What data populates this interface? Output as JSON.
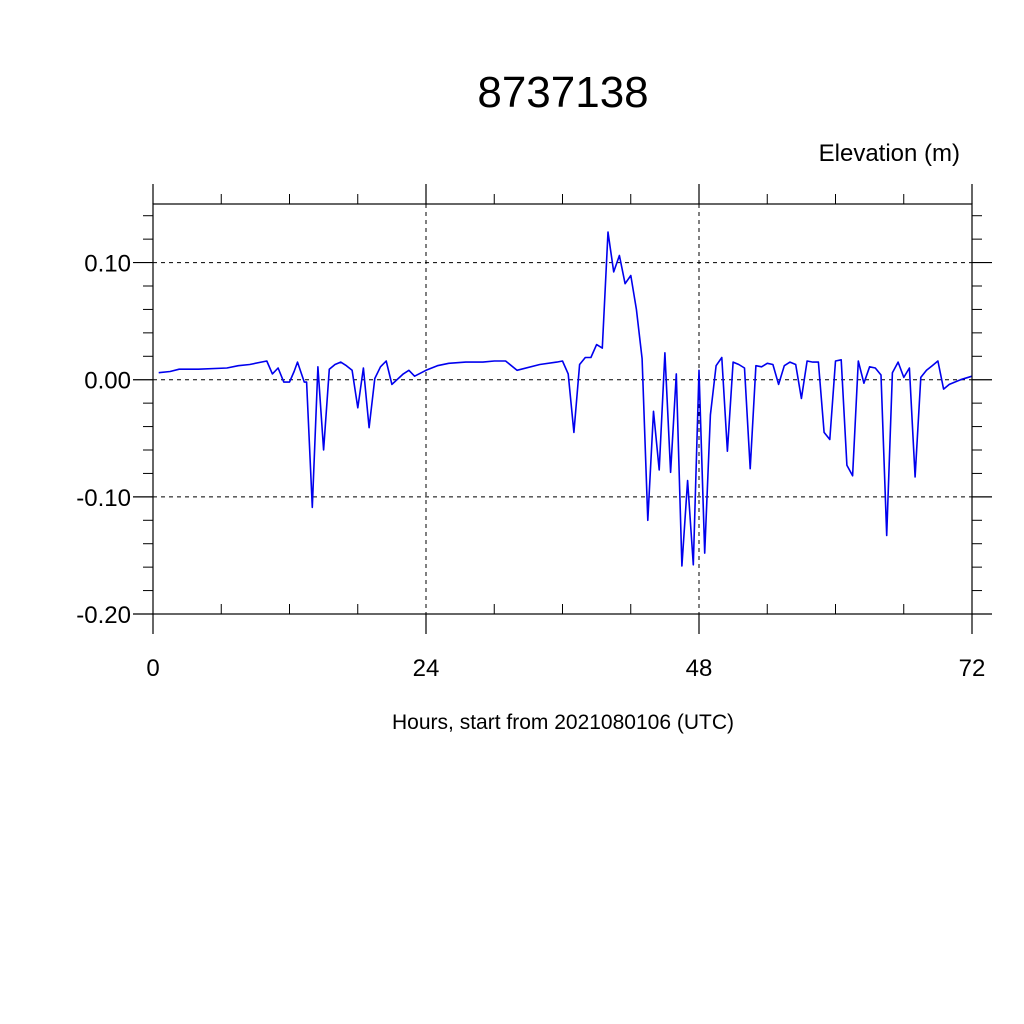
{
  "chart_data": {
    "type": "line",
    "title": "8737138",
    "ylabel_unit": "Elevation (m)",
    "xlabel": "Hours, start from 2021080106 (UTC)",
    "xlim": [
      0,
      72
    ],
    "ylim": [
      -0.2,
      0.15
    ],
    "x_ticks": [
      0,
      24,
      48,
      72
    ],
    "x_tick_labels": [
      "0",
      "24",
      "48",
      "72"
    ],
    "y_ticks": [
      -0.2,
      -0.1,
      0.0,
      0.1
    ],
    "y_tick_labels": [
      "-0.20",
      "-0.10",
      "0.00",
      "0.10"
    ],
    "grid": "dashed at major ticks",
    "series": [
      {
        "color": "#0000ee",
        "x": [
          0.5,
          1.5,
          2.3,
          4,
          6.5,
          7.5,
          8.5,
          10,
          10.5,
          11,
          11.5,
          12,
          12.4,
          12.7,
          13.3,
          13.5,
          14,
          14.5,
          15,
          15.5,
          16,
          16.5,
          17,
          17.5,
          18,
          18.5,
          19,
          19.5,
          20,
          20.5,
          21,
          22,
          22.5,
          23,
          24,
          25,
          26,
          27.5,
          29,
          30,
          31,
          32,
          34,
          35.5,
          36,
          36.5,
          37,
          37.5,
          38,
          38.5,
          39,
          39.5,
          40,
          40.5,
          41,
          41.5,
          42,
          42.5,
          43,
          43.5,
          44,
          44.5,
          45,
          45.5,
          46,
          46.5,
          47,
          47.5,
          48,
          48.5,
          49,
          49.5,
          50,
          50.5,
          51,
          51.5,
          52,
          52.5,
          53,
          53.5,
          54,
          54.5,
          55,
          55.5,
          56,
          56.5,
          57,
          57.5,
          58,
          58.5,
          59,
          59.5,
          60,
          60.5,
          61,
          61.5,
          62,
          62.5,
          63,
          63.5,
          64,
          64.5,
          65,
          65.5,
          66,
          66.5,
          67,
          67.5,
          68,
          68.5,
          69,
          69.5,
          70,
          71,
          72
        ],
        "y": [
          0.006,
          0.007,
          0.009,
          0.009,
          0.01,
          0.012,
          0.013,
          0.016,
          0.005,
          0.01,
          -0.002,
          -0.002,
          0.007,
          0.015,
          -0.002,
          -0.002,
          -0.109,
          0.011,
          -0.06,
          0.009,
          0.013,
          0.015,
          0.012,
          0.008,
          -0.024,
          0.01,
          -0.041,
          0.001,
          0.011,
          0.016,
          -0.004,
          0.005,
          0.008,
          0.003,
          0.008,
          0.012,
          0.014,
          0.015,
          0.015,
          0.016,
          0.016,
          0.008,
          0.013,
          0.015,
          0.016,
          0.005,
          -0.045,
          0.013,
          0.019,
          0.019,
          0.03,
          0.027,
          0.126,
          0.092,
          0.106,
          0.082,
          0.089,
          0.06,
          0.018,
          -0.12,
          -0.027,
          -0.077,
          0.023,
          -0.079,
          0.005,
          -0.159,
          -0.086,
          -0.158,
          0.008,
          -0.148,
          -0.03,
          0.012,
          0.019,
          -0.061,
          0.015,
          0.013,
          0.01,
          -0.076,
          0.012,
          0.011,
          0.014,
          0.013,
          -0.004,
          0.012,
          0.015,
          0.013,
          -0.016,
          0.016,
          0.015,
          0.015,
          -0.045,
          -0.051,
          0.016,
          0.017,
          -0.073,
          -0.082,
          0.016,
          -0.003,
          0.011,
          0.01,
          0.004,
          -0.133,
          0.006,
          0.015,
          0.002,
          0.01,
          -0.083,
          0.002,
          0.008,
          0.012,
          0.016,
          -0.008,
          -0.004,
          0.0,
          0.003
        ]
      }
    ]
  }
}
